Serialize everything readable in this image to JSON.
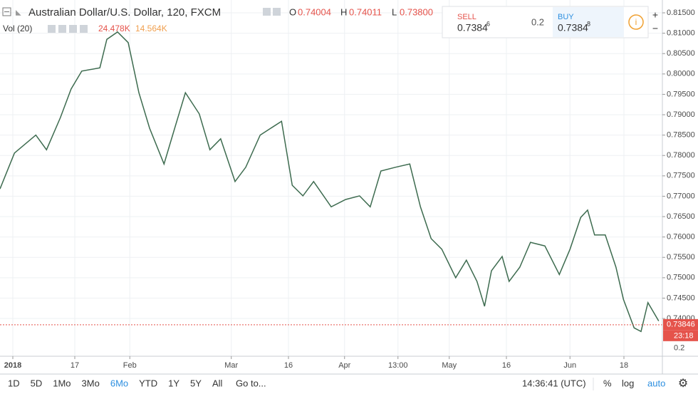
{
  "header": {
    "symbol": "Australian Dollar/U.S. Dollar, 120, FXCM",
    "open_label": "O",
    "open": 0.74004,
    "high_label": "H",
    "high": 0.74011,
    "low_label": "L",
    "low": 0.738,
    "low_text": "0.73800",
    "volume_label": "Vol (20)",
    "volume": "24.478K",
    "volume_ma": "14.564K"
  },
  "trade_panel": {
    "sell_label": "SELL",
    "sell_price": "0.7384",
    "sell_pip": "6",
    "spread": "0.2",
    "buy_label": "BUY",
    "buy_price": "0.7384",
    "buy_pip": "8"
  },
  "toolbar": {
    "ranges": [
      "1D",
      "5D",
      "1Mo",
      "3Mo",
      "6Mo",
      "YTD",
      "1Y",
      "5Y",
      "All"
    ],
    "goto": "Go to...",
    "clock": "14:36:41 (UTC)",
    "percent": "%",
    "log": "log",
    "auto": "auto"
  },
  "chart_data": {
    "type": "line",
    "color": "#3d6b4f",
    "grid": true,
    "x": [
      0,
      2.7,
      6.7,
      8.7,
      11.3,
      13.3,
      15.3,
      18.7,
      20,
      22,
      24,
      26,
      28,
      30.7,
      32.7,
      34.7,
      37.3,
      39.3,
      41.3,
      44,
      46,
      48.7,
      50.7,
      52.7,
      54.7,
      56.7,
      58.7,
      62,
      64.7,
      67.3,
      69.3,
      71.3,
      74,
      76.7,
      78.7,
      80.7,
      82.7,
      85.3,
      87.3,
      89.3,
      90.7,
      92,
      94,
      95.3,
      97.3,
      99.3,
      102,
      104.7,
      106.7,
      108.7,
      110,
      111.3,
      113.3,
      115.3,
      116.7,
      118.7,
      120,
      121.3,
      123.3
    ],
    "values": [
      0.7718,
      0.7806,
      0.785,
      0.7814,
      0.7893,
      0.7963,
      0.8007,
      0.8015,
      0.8085,
      0.8103,
      0.8077,
      0.7954,
      0.7867,
      0.7779,
      0.7867,
      0.7954,
      0.7902,
      0.7814,
      0.7841,
      0.7736,
      0.7771,
      0.785,
      0.7867,
      0.7884,
      0.7727,
      0.7701,
      0.7736,
      0.7674,
      0.7692,
      0.7701,
      0.7674,
      0.7762,
      0.7771,
      0.7779,
      0.7674,
      0.7596,
      0.757,
      0.75,
      0.7543,
      0.7491,
      0.743,
      0.7517,
      0.7552,
      0.7491,
      0.7526,
      0.7587,
      0.7578,
      0.7508,
      0.757,
      0.7648,
      0.7666,
      0.7605,
      0.7605,
      0.7526,
      0.7447,
      0.7377,
      0.7368,
      0.7439,
      0.7394
    ],
    "xlim": [
      0,
      124
    ],
    "xticks": [
      {
        "value": 2.4,
        "label": "2018"
      },
      {
        "value": 14,
        "label": "17"
      },
      {
        "value": 24.3,
        "label": "Feb"
      },
      {
        "value": 43.3,
        "label": "Mar"
      },
      {
        "value": 54,
        "label": "16"
      },
      {
        "value": 64.5,
        "label": "Apr"
      },
      {
        "value": 74.5,
        "label": "13:00"
      },
      {
        "value": 84.1,
        "label": "May"
      },
      {
        "value": 94.8,
        "label": "16"
      },
      {
        "value": 106.7,
        "label": "Jun"
      },
      {
        "value": 116.8,
        "label": "18"
      }
    ],
    "ylim": [
      0.73074,
      0.81815
    ],
    "yticks": [
      {
        "value": 0.815,
        "label": "0.81500"
      },
      {
        "value": 0.81,
        "label": "0.81000"
      },
      {
        "value": 0.805,
        "label": "0.80500"
      },
      {
        "value": 0.8,
        "label": "0.80000"
      },
      {
        "value": 0.795,
        "label": "0.79500"
      },
      {
        "value": 0.79,
        "label": "0.79000"
      },
      {
        "value": 0.785,
        "label": "0.78500"
      },
      {
        "value": 0.78,
        "label": "0.78000"
      },
      {
        "value": 0.775,
        "label": "0.77500"
      },
      {
        "value": 0.77,
        "label": "0.77000"
      },
      {
        "value": 0.765,
        "label": "0.76500"
      },
      {
        "value": 0.76,
        "label": "0.76000"
      },
      {
        "value": 0.755,
        "label": "0.75500"
      },
      {
        "value": 0.75,
        "label": "0.75000"
      },
      {
        "value": 0.745,
        "label": "0.74500"
      },
      {
        "value": 0.74,
        "label": "0.74000"
      }
    ],
    "last_price": 0.73846,
    "last_price_color": "#e5534b",
    "countdown": "23:18",
    "volume_axis_label": "0.2"
  }
}
